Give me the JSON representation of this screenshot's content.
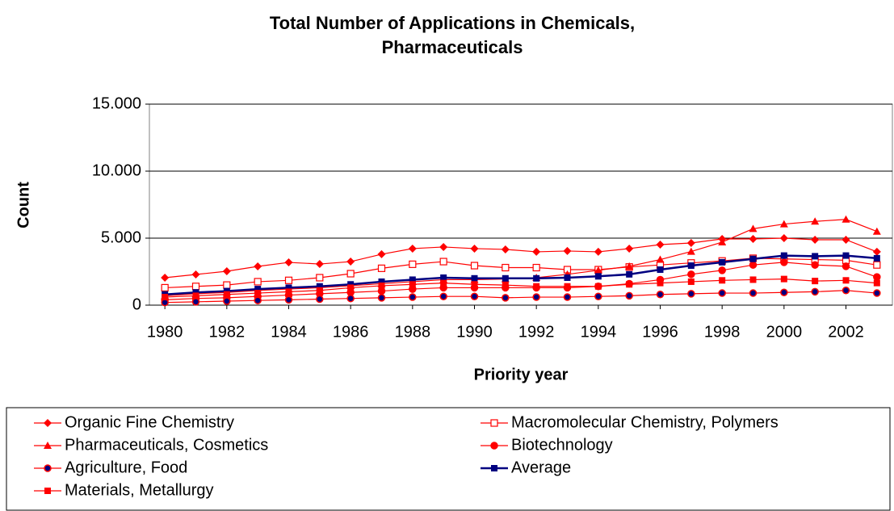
{
  "chart_data": {
    "type": "line",
    "title": [
      "Total Number of Applications in Chemicals,",
      "Pharmaceuticals"
    ],
    "x_label": "Priority year",
    "y_label": "Count",
    "x": [
      1980,
      1981,
      1982,
      1983,
      1984,
      1985,
      1986,
      1987,
      1988,
      1989,
      1990,
      1991,
      1992,
      1993,
      1994,
      1995,
      1996,
      1997,
      1998,
      1999,
      2000,
      2001,
      2002,
      2003
    ],
    "xlim": [
      1979.5,
      2003.5
    ],
    "xticks": [
      1980,
      1982,
      1984,
      1986,
      1988,
      1990,
      1992,
      1994,
      1996,
      1998,
      2000,
      2002
    ],
    "ylim": [
      0,
      15000
    ],
    "yticks": [
      0,
      {
        "value": 5000,
        "label": "5.000"
      },
      {
        "value": 10000,
        "label": "10.000"
      },
      {
        "value": 15000,
        "label": "15.000"
      }
    ],
    "grid": true,
    "legend": "bottom",
    "series": [
      {
        "name": "Organic Fine Chemistry",
        "color": "#ff0000",
        "marker": "diamond",
        "values": [
          2050,
          2290,
          2530,
          2890,
          3190,
          3070,
          3250,
          3800,
          4220,
          4340,
          4220,
          4160,
          3980,
          4040,
          3980,
          4220,
          4520,
          4640,
          4940,
          4940,
          5000,
          4880,
          4880,
          3980
        ]
      },
      {
        "name": "Macromolecular Chemistry, Polymers",
        "color": "#ff0000",
        "marker": "square-open",
        "values": [
          1300,
          1400,
          1500,
          1750,
          1850,
          2050,
          2350,
          2750,
          3050,
          3250,
          2950,
          2800,
          2800,
          2650,
          2650,
          2850,
          3000,
          3150,
          3300,
          3500,
          3450,
          3400,
          3350,
          3000
        ]
      },
      {
        "name": "Pharmaceuticals, Cosmetics",
        "color": "#ff0000",
        "marker": "triangle",
        "values": [
          700,
          850,
          950,
          1100,
          1200,
          1300,
          1450,
          1600,
          1750,
          1900,
          1900,
          1950,
          2050,
          2300,
          2600,
          2900,
          3400,
          4000,
          4700,
          5700,
          6050,
          6250,
          6400,
          5500
        ]
      },
      {
        "name": "Biotechnology",
        "color": "#ff0000",
        "marker": "circle",
        "values": [
          400,
          500,
          550,
          650,
          750,
          850,
          950,
          1050,
          1200,
          1300,
          1300,
          1300,
          1300,
          1300,
          1400,
          1600,
          1900,
          2300,
          2600,
          3000,
          3200,
          3000,
          2900,
          2100
        ]
      },
      {
        "name": "Agriculture, Food",
        "color": "#ff0000",
        "marker": "circle",
        "marker_color": "#000080",
        "values": [
          200,
          250,
          300,
          350,
          400,
          450,
          500,
          550,
          600,
          650,
          650,
          550,
          600,
          600,
          650,
          700,
          800,
          850,
          900,
          900,
          950,
          1000,
          1100,
          900
        ]
      },
      {
        "name": "Average",
        "color": "#000080",
        "marker": "square",
        "values": [
          800,
          950,
          1050,
          1200,
          1300,
          1400,
          1550,
          1750,
          1900,
          2050,
          2000,
          2000,
          2000,
          2050,
          2150,
          2300,
          2650,
          2950,
          3200,
          3450,
          3700,
          3650,
          3700,
          3500
        ]
      },
      {
        "name": "Materials, Metallurgy",
        "color": "#ff0000",
        "marker": "square",
        "values": [
          600,
          700,
          800,
          900,
          1000,
          1100,
          1300,
          1450,
          1550,
          1650,
          1550,
          1500,
          1400,
          1400,
          1400,
          1550,
          1650,
          1750,
          1850,
          1900,
          1950,
          1800,
          1850,
          1650
        ]
      }
    ]
  }
}
